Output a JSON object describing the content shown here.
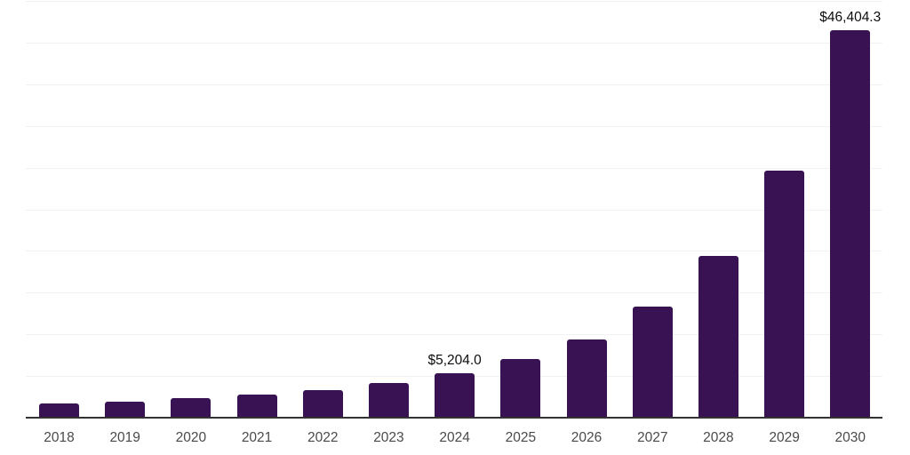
{
  "chart_data": {
    "type": "bar",
    "title": "",
    "xlabel": "",
    "ylabel": "",
    "categories": [
      "2018",
      "2019",
      "2020",
      "2021",
      "2022",
      "2023",
      "2024",
      "2025",
      "2026",
      "2027",
      "2028",
      "2029",
      "2030"
    ],
    "values": [
      1650,
      1850,
      2250,
      2650,
      3190,
      4000,
      5204.0,
      6900,
      9270,
      13220,
      19330,
      29500,
      46404.3
    ],
    "data_labels": [
      {
        "year": "2024",
        "text": "$5,204.0"
      },
      {
        "year": "2030",
        "text": "$46,404.3"
      }
    ],
    "ylim": [
      0,
      50000
    ],
    "gridline_step": 5000,
    "grid": "horizontal-only",
    "legend": "none",
    "y_tick_labels_visible": false,
    "bar_color": "#381253",
    "axis_line_color": "#333333",
    "gridline_color": "#f2f2f2",
    "x_tick_color": "#4a4a4a",
    "data_label_color": "#0d0d0d",
    "background_color": "#ffffff"
  }
}
